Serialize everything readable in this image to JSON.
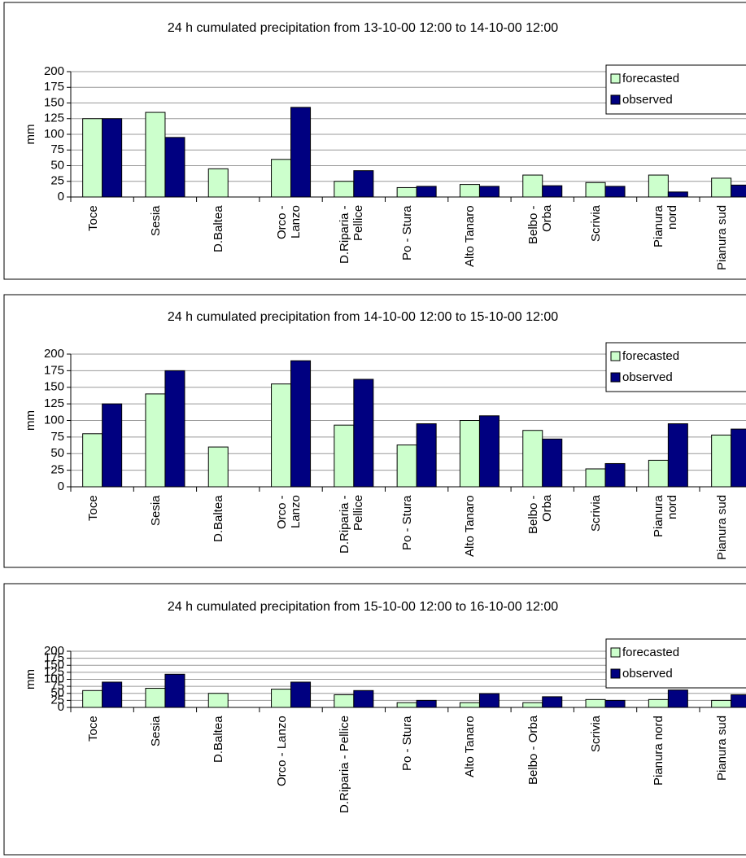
{
  "chart_data": [
    {
      "type": "bar",
      "title": "24 h cumulated precipitation from 13-10-00 12:00 to 14-10-00 12:00",
      "y_label": "mm",
      "categories": [
        "Toce",
        "Sesia",
        "D.Baltea",
        "Orco - Lanzo",
        "D.Riparia - Pellice",
        "Po - Stura",
        "Alto Tanaro",
        "Belbo - Orba",
        "Scrivia",
        "Pianura nord",
        "Pianura sud"
      ],
      "series": [
        {
          "name": "forecasted",
          "color": "#ccffcc",
          "values": [
            125,
            135,
            45,
            60,
            25,
            15,
            20,
            35,
            23,
            35,
            30
          ]
        },
        {
          "name": "observed",
          "color": "#000080",
          "values": [
            125,
            95,
            null,
            143,
            42,
            17,
            17,
            18,
            17,
            8,
            19
          ]
        }
      ],
      "ylim": [
        0,
        200
      ],
      "yticks": [
        0,
        25,
        50,
        75,
        100,
        125,
        150,
        175,
        200
      ],
      "grid": true,
      "legend": "upper right"
    },
    {
      "type": "bar",
      "title": "24 h cumulated precipitation from 14-10-00 12:00 to 15-10-00 12:00",
      "y_label": "mm",
      "categories": [
        "Toce",
        "Sesia",
        "D.Baltea",
        "Orco - Lanzo",
        "D.Riparia - Pellice",
        "Po - Stura",
        "Alto Tanaro",
        "Belbo - Orba",
        "Scrivia",
        "Pianura nord",
        "Pianura sud"
      ],
      "series": [
        {
          "name": "forecasted",
          "color": "#ccffcc",
          "values": [
            80,
            140,
            60,
            155,
            93,
            63,
            100,
            85,
            27,
            40,
            78
          ]
        },
        {
          "name": "observed",
          "color": "#000080",
          "values": [
            125,
            175,
            null,
            190,
            162,
            95,
            107,
            72,
            35,
            95,
            87
          ]
        }
      ],
      "ylim": [
        0,
        200
      ],
      "yticks": [
        0,
        25,
        50,
        75,
        100,
        125,
        150,
        175,
        200
      ],
      "grid": true,
      "legend": "upper right"
    },
    {
      "type": "bar",
      "title": "24 h cumulated precipitation from 15-10-00 12:00 to 16-10-00 12:00",
      "y_label": "mm",
      "categories": [
        "Toce",
        "Sesia",
        "D.Baltea",
        "Orco - Lanzo",
        "D.Riparia - Pellice",
        "Po - Stura",
        "Alto Tanaro",
        "Belbo - Orba",
        "Scrivia",
        "Pianura nord",
        "Pianura sud"
      ],
      "series": [
        {
          "name": "forecasted",
          "color": "#ccffcc",
          "values": [
            60,
            68,
            50,
            65,
            45,
            17,
            17,
            17,
            28,
            28,
            25
          ]
        },
        {
          "name": "observed",
          "color": "#000080",
          "values": [
            90,
            118,
            null,
            90,
            60,
            25,
            49,
            38,
            25,
            62,
            45
          ]
        }
      ],
      "ylim": [
        0,
        200
      ],
      "yticks": [
        0,
        25,
        50,
        75,
        100,
        125,
        150,
        175,
        200
      ],
      "grid": true,
      "legend": "upper right"
    }
  ]
}
